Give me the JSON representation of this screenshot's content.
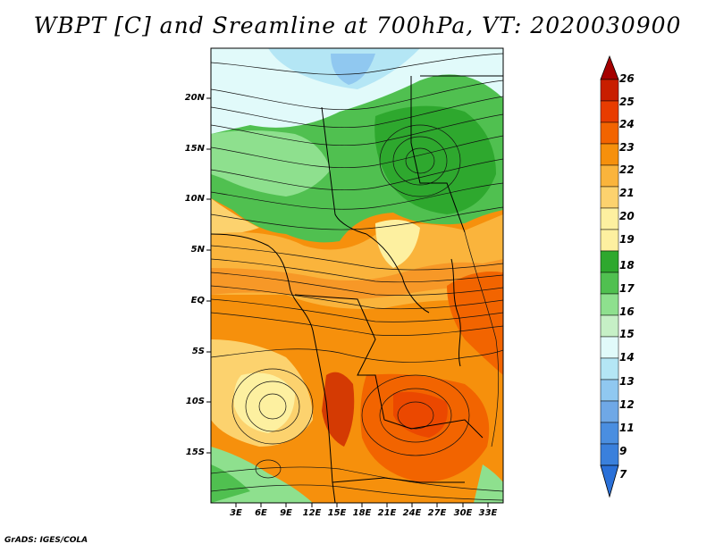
{
  "title": "WBPT [C] and Sreamline at 700hPa, VT: 2020030900",
  "footer": "GrADS: IGES/COLA",
  "map": {
    "lat_ticks": [
      "20N",
      "15N",
      "10N",
      "5N",
      "EQ",
      "5S",
      "10S",
      "15S"
    ],
    "lon_ticks": [
      "3E",
      "6E",
      "9E",
      "12E",
      "15E",
      "18E",
      "21E",
      "24E",
      "27E",
      "30E",
      "33E"
    ]
  },
  "colorbar": {
    "levels": [
      "26",
      "25",
      "24",
      "23",
      "22",
      "21",
      "20",
      "19",
      "18",
      "17",
      "16",
      "15",
      "14",
      "13",
      "12",
      "11",
      "9",
      "7"
    ],
    "colors": [
      "#a50000",
      "#c81e00",
      "#e83c00",
      "#f26400",
      "#f6900c",
      "#fab43c",
      "#fcd26e",
      "#fdf0a0",
      "#2ea82e",
      "#50c050",
      "#8ee08e",
      "#e1fafa",
      "#b4e6f5",
      "#90c8f0",
      "#6fa8e6",
      "#4a8ee0",
      "#2a70d8"
    ]
  }
}
